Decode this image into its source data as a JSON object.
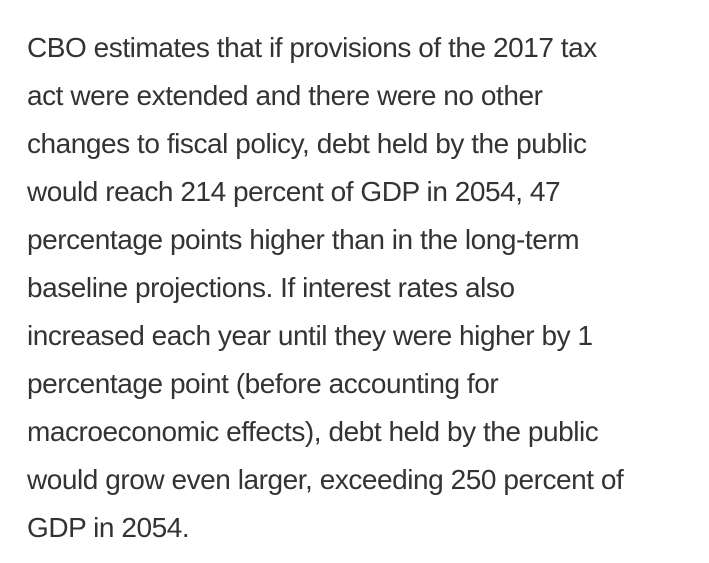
{
  "text": {
    "lines": [
      "CBO estimates that if provisions of the 2017 tax",
      "act were extended and there were no other",
      "changes to fiscal policy, debt held by the public",
      "would reach 214 percent of GDP in 2054, 47",
      "percentage points higher than in the long-term",
      "baseline projections. If interest rates also",
      "increased each year until they were higher by 1",
      "percentage point (before accounting for",
      "macroeconomic effects), debt held by the public",
      "would grow even larger, exceeding 250 percent of",
      "GDP in 2054."
    ]
  },
  "colors": {
    "text": "#333333",
    "background": "#ffffff"
  }
}
